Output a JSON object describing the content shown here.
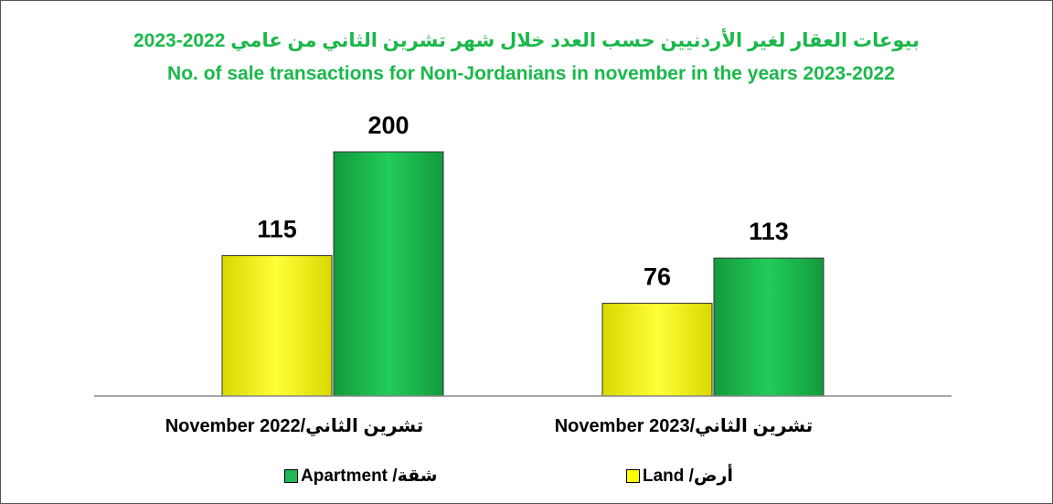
{
  "chart_data": {
    "type": "bar",
    "title": "بيوعات العقار لغير الأردنيين حسب العدد خلال شهر تشرين الثاني من عامي 2022-2023",
    "subtitle": "No. of sale transactions for Non-Jordanians in november in the years 2023-2022",
    "categories": [
      "November 2022/تشرين الثاني",
      "November 2023/تشرين الثاني"
    ],
    "series": [
      {
        "name": "أرض/ Land",
        "color": "#ffff00",
        "values": [
          115,
          76
        ]
      },
      {
        "name": "شقة/ Apartment",
        "color": "#1db954",
        "values": [
          200,
          113
        ]
      }
    ]
  }
}
